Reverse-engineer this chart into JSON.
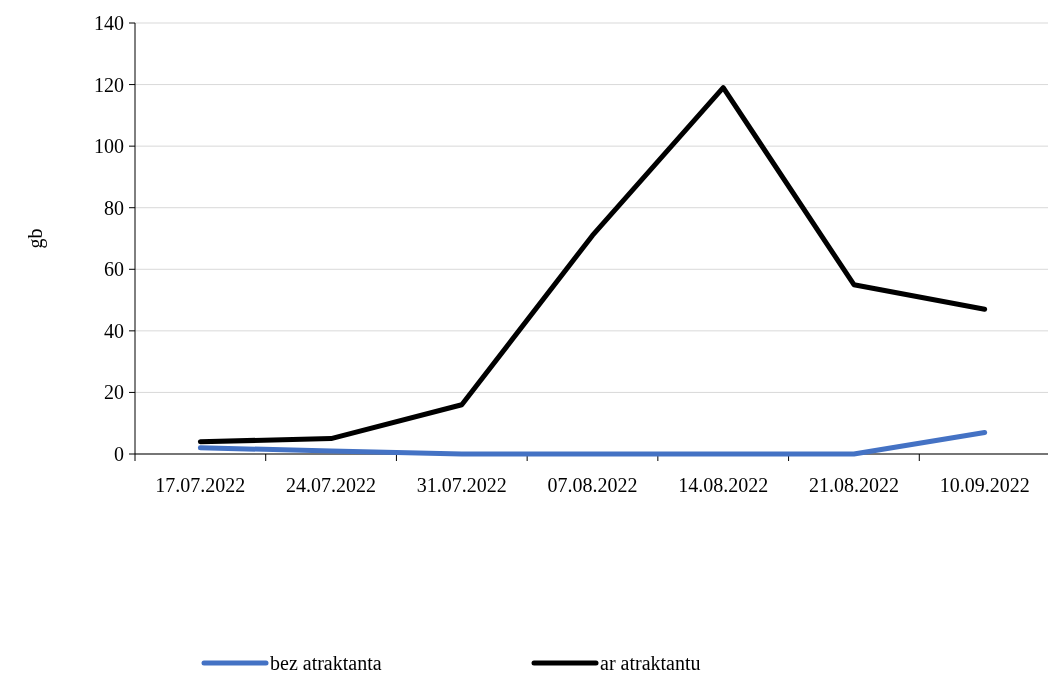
{
  "chart_data": {
    "type": "line",
    "ylabel": "gb",
    "categories": [
      "17.07.2022",
      "24.07.2022",
      "31.07.2022",
      "07.08.2022",
      "14.08.2022",
      "21.08.2022",
      "10.09.2022"
    ],
    "series": [
      {
        "name": "bez atraktanta",
        "color": "#4472c4",
        "values": [
          2,
          1,
          0,
          0,
          0,
          0,
          7
        ]
      },
      {
        "name": "ar atraktantu",
        "color": "#000000",
        "values": [
          4,
          5,
          16,
          71,
          119,
          55,
          47
        ]
      }
    ],
    "ylim": [
      0,
      140
    ],
    "yticks": [
      0,
      20,
      40,
      60,
      80,
      100,
      120,
      140
    ],
    "grid": "y",
    "legend": "bottom",
    "marker": "none",
    "line_style": "solid"
  }
}
